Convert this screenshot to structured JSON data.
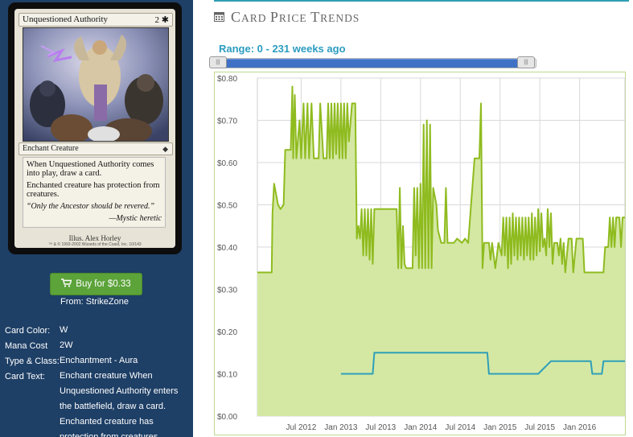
{
  "card": {
    "name": "Unquestioned Authority",
    "mana": "2 ✱",
    "type_line": "Enchant Creature",
    "rules_text_1": "When Unquestioned Authority comes into play, draw a card.",
    "rules_text_2": "Enchanted creature has protection from creatures.",
    "flavor": "“Only the Ancestor should be revered.”",
    "flavor_attribution": "—Mystic heretic",
    "artist": "Illus. Alex Horley",
    "legal": "™ & © 1993-2002 Wizards of the Coast, Inc. 10/143",
    "set_symbol": "set-symbol"
  },
  "buy": {
    "label": "Buy for $0.33",
    "icon": "cart-icon",
    "from": "From: StrikeZone"
  },
  "properties": [
    {
      "label": "Card Color:",
      "value": "W"
    },
    {
      "label": "Mana Cost",
      "value": "2W"
    },
    {
      "label": "Type & Class:",
      "value": "Enchantment - Aura"
    },
    {
      "label": "Card Text:",
      "value": "Enchant creature When Unquestioned Authority enters the battlefield, draw a card. Enchanted creature has protection from creatures."
    }
  ],
  "header": {
    "icon": "calendar-icon",
    "title_first_c": "C",
    "title_rest_1": "ARD ",
    "title_first_p": "P",
    "title_rest_2": "RICE ",
    "title_first_t": "T",
    "title_rest_3": "RENDS"
  },
  "range": {
    "label": "Range: 0 - 231 weeks ago",
    "min_weeks": 0,
    "max_weeks": 231
  },
  "colors": {
    "accent": "#2b9cbf",
    "series_green": "#8fbb1f",
    "area_green": "#d4e8a4",
    "series_teal": "#2f9fb8",
    "panel_blue": "#1e3f66",
    "buy_green": "#5ca33a"
  },
  "chart_data": {
    "type": "area",
    "y_ticks": [
      "$0.00",
      "$0.10",
      "$0.20",
      "$0.30",
      "$0.40",
      "$0.50",
      "$0.60",
      "$0.70",
      "$0.80"
    ],
    "ylim": [
      0,
      0.8
    ],
    "x_ticks": [
      "Jul 2012",
      "Jan 2013",
      "Jul 2013",
      "Jan 2014",
      "Jul 2014",
      "Jan 2015",
      "Jul 2015",
      "Jan 2016"
    ],
    "x_tick_dates": [
      2012.5,
      2013.0,
      2013.5,
      2014.0,
      2014.5,
      2015.0,
      2015.5,
      2016.0
    ],
    "xlim": [
      2011.95,
      2016.57
    ],
    "grid": true,
    "series": [
      {
        "color": "#8fbb1f",
        "fill": true,
        "points": [
          [
            2011.95,
            0.34
          ],
          [
            2012.13,
            0.34
          ],
          [
            2012.14,
            0.48
          ],
          [
            2012.16,
            0.55
          ],
          [
            2012.21,
            0.5
          ],
          [
            2012.24,
            0.49
          ],
          [
            2012.28,
            0.5
          ],
          [
            2012.3,
            0.63
          ],
          [
            2012.37,
            0.63
          ],
          [
            2012.39,
            0.78
          ],
          [
            2012.4,
            0.61
          ],
          [
            2012.42,
            0.76
          ],
          [
            2012.44,
            0.61
          ],
          [
            2012.48,
            0.7
          ],
          [
            2012.5,
            0.61
          ],
          [
            2012.53,
            0.74
          ],
          [
            2012.55,
            0.61
          ],
          [
            2012.58,
            0.74
          ],
          [
            2012.6,
            0.61
          ],
          [
            2012.63,
            0.74
          ],
          [
            2012.66,
            0.61
          ],
          [
            2012.72,
            0.61
          ],
          [
            2012.74,
            0.74
          ],
          [
            2012.78,
            0.61
          ],
          [
            2012.82,
            0.61
          ],
          [
            2012.84,
            0.74
          ],
          [
            2012.86,
            0.61
          ],
          [
            2012.88,
            0.74
          ],
          [
            2012.9,
            0.61
          ],
          [
            2012.92,
            0.74
          ],
          [
            2012.94,
            0.62
          ],
          [
            2012.96,
            0.74
          ],
          [
            2012.98,
            0.61
          ],
          [
            2013.0,
            0.74
          ],
          [
            2013.02,
            0.61
          ],
          [
            2013.04,
            0.74
          ],
          [
            2013.06,
            0.61
          ],
          [
            2013.08,
            0.74
          ],
          [
            2013.1,
            0.65
          ],
          [
            2013.14,
            0.74
          ],
          [
            2013.18,
            0.74
          ],
          [
            2013.2,
            0.42
          ],
          [
            2013.22,
            0.45
          ],
          [
            2013.24,
            0.42
          ],
          [
            2013.26,
            0.49
          ],
          [
            2013.28,
            0.38
          ],
          [
            2013.3,
            0.49
          ],
          [
            2013.32,
            0.38
          ],
          [
            2013.34,
            0.49
          ],
          [
            2013.36,
            0.37
          ],
          [
            2013.38,
            0.49
          ],
          [
            2013.4,
            0.36
          ],
          [
            2013.42,
            0.49
          ],
          [
            2013.46,
            0.49
          ],
          [
            2013.48,
            0.49
          ],
          [
            2013.7,
            0.49
          ],
          [
            2013.72,
            0.35
          ],
          [
            2013.74,
            0.54
          ],
          [
            2013.76,
            0.35
          ],
          [
            2013.78,
            0.45
          ],
          [
            2013.8,
            0.36
          ],
          [
            2013.82,
            0.35
          ],
          [
            2013.9,
            0.35
          ],
          [
            2013.92,
            0.54
          ],
          [
            2013.94,
            0.38
          ],
          [
            2013.96,
            0.54
          ],
          [
            2013.98,
            0.35
          ],
          [
            2014.0,
            0.55
          ],
          [
            2014.02,
            0.35
          ],
          [
            2014.04,
            0.69
          ],
          [
            2014.06,
            0.35
          ],
          [
            2014.08,
            0.7
          ],
          [
            2014.1,
            0.35
          ],
          [
            2014.12,
            0.69
          ],
          [
            2014.14,
            0.35
          ],
          [
            2014.16,
            0.54
          ],
          [
            2014.2,
            0.5
          ],
          [
            2014.22,
            0.44
          ],
          [
            2014.26,
            0.41
          ],
          [
            2014.3,
            0.41
          ],
          [
            2014.32,
            0.54
          ],
          [
            2014.34,
            0.41
          ],
          [
            2014.38,
            0.41
          ],
          [
            2014.42,
            0.41
          ],
          [
            2014.46,
            0.42
          ],
          [
            2014.52,
            0.41
          ],
          [
            2014.56,
            0.42
          ],
          [
            2014.6,
            0.41
          ],
          [
            2014.68,
            0.61
          ],
          [
            2014.74,
            0.61
          ],
          [
            2014.76,
            0.74
          ],
          [
            2014.78,
            0.35
          ],
          [
            2014.8,
            0.41
          ],
          [
            2014.86,
            0.41
          ],
          [
            2014.88,
            0.37
          ],
          [
            2014.9,
            0.41
          ],
          [
            2014.94,
            0.35
          ],
          [
            2014.98,
            0.41
          ],
          [
            2015.02,
            0.38
          ],
          [
            2015.04,
            0.47
          ],
          [
            2015.06,
            0.38
          ],
          [
            2015.08,
            0.47
          ],
          [
            2015.1,
            0.35
          ],
          [
            2015.12,
            0.47
          ],
          [
            2015.14,
            0.36
          ],
          [
            2015.16,
            0.48
          ],
          [
            2015.18,
            0.38
          ],
          [
            2015.2,
            0.47
          ],
          [
            2015.22,
            0.37
          ],
          [
            2015.24,
            0.47
          ],
          [
            2015.26,
            0.38
          ],
          [
            2015.28,
            0.47
          ],
          [
            2015.3,
            0.37
          ],
          [
            2015.32,
            0.47
          ],
          [
            2015.34,
            0.38
          ],
          [
            2015.36,
            0.47
          ],
          [
            2015.38,
            0.37
          ],
          [
            2015.4,
            0.48
          ],
          [
            2015.42,
            0.37
          ],
          [
            2015.44,
            0.47
          ],
          [
            2015.46,
            0.38
          ],
          [
            2015.48,
            0.49
          ],
          [
            2015.5,
            0.39
          ],
          [
            2015.52,
            0.48
          ],
          [
            2015.54,
            0.4
          ],
          [
            2015.56,
            0.42
          ],
          [
            2015.58,
            0.38
          ],
          [
            2015.6,
            0.49
          ],
          [
            2015.62,
            0.4
          ],
          [
            2015.64,
            0.48
          ],
          [
            2015.66,
            0.36
          ],
          [
            2015.68,
            0.41
          ],
          [
            2015.72,
            0.41
          ],
          [
            2015.74,
            0.38
          ],
          [
            2015.76,
            0.42
          ],
          [
            2015.78,
            0.36
          ],
          [
            2015.8,
            0.41
          ],
          [
            2015.82,
            0.34
          ],
          [
            2015.86,
            0.42
          ],
          [
            2015.9,
            0.42
          ],
          [
            2015.92,
            0.34
          ],
          [
            2015.96,
            0.42
          ],
          [
            2016.0,
            0.42
          ],
          [
            2016.04,
            0.42
          ],
          [
            2016.06,
            0.34
          ],
          [
            2016.1,
            0.34
          ],
          [
            2016.16,
            0.34
          ],
          [
            2016.18,
            0.34
          ],
          [
            2016.2,
            0.34
          ],
          [
            2016.3,
            0.34
          ],
          [
            2016.32,
            0.4
          ],
          [
            2016.36,
            0.4
          ],
          [
            2016.38,
            0.47
          ],
          [
            2016.4,
            0.4
          ],
          [
            2016.42,
            0.47
          ],
          [
            2016.44,
            0.4
          ],
          [
            2016.46,
            0.47
          ],
          [
            2016.5,
            0.47
          ],
          [
            2016.52,
            0.4
          ],
          [
            2016.54,
            0.47
          ],
          [
            2016.57,
            0.47
          ]
        ]
      },
      {
        "color": "#2f9fb8",
        "fill": false,
        "points": [
          [
            2013.0,
            0.1
          ],
          [
            2013.4,
            0.1
          ],
          [
            2013.42,
            0.15
          ],
          [
            2014.84,
            0.15
          ],
          [
            2014.86,
            0.1
          ],
          [
            2015.48,
            0.1
          ],
          [
            2015.64,
            0.13
          ],
          [
            2016.14,
            0.13
          ],
          [
            2016.16,
            0.1
          ],
          [
            2016.28,
            0.1
          ],
          [
            2016.3,
            0.13
          ],
          [
            2016.57,
            0.13
          ]
        ]
      }
    ]
  }
}
